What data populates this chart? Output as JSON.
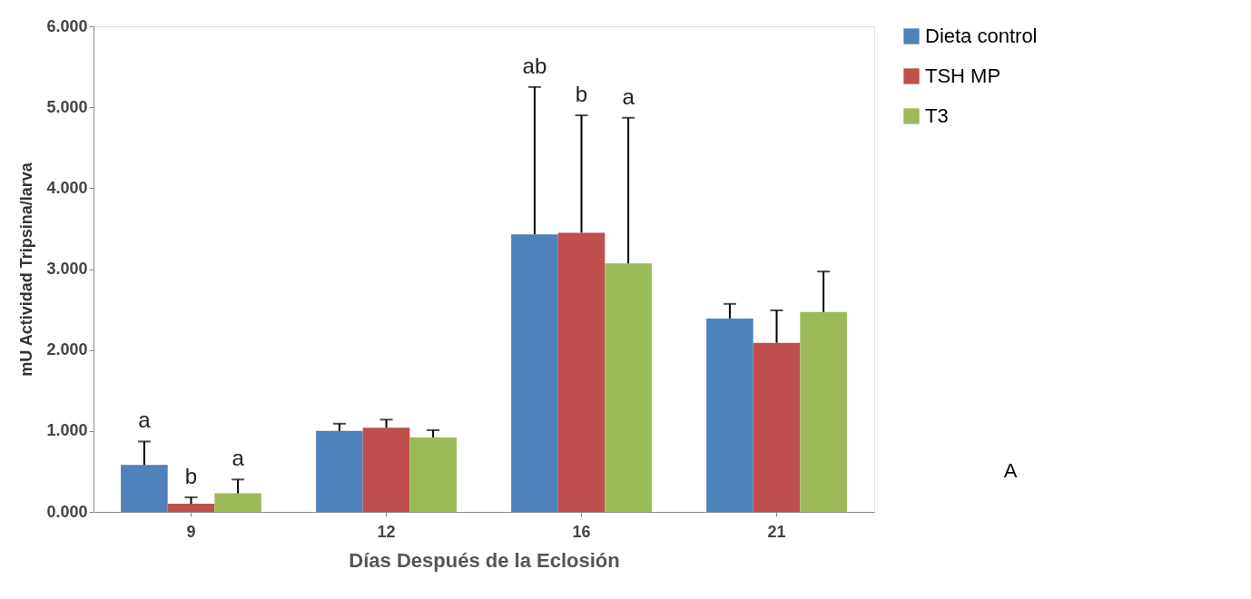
{
  "chart_data": {
    "type": "bar",
    "xlabel": "Días Después de la Eclosión",
    "ylabel": "mU Actividad Tripsina/larva",
    "categories": [
      "9",
      "12",
      "16",
      "21"
    ],
    "series": [
      {
        "name": "Dieta control",
        "color": "#4f81bd",
        "values": [
          0.58,
          1.0,
          3.43,
          2.39
        ],
        "errors": [
          [
            0.58,
            0.87
          ],
          [
            1.0,
            1.09
          ],
          [
            3.43,
            5.25
          ],
          [
            2.39,
            2.57
          ]
        ]
      },
      {
        "name": "TSH MP",
        "color": "#c0504d",
        "values": [
          0.1,
          1.04,
          3.45,
          2.09
        ],
        "errors": [
          [
            0.1,
            0.18
          ],
          [
            1.04,
            1.14
          ],
          [
            3.45,
            4.9
          ],
          [
            2.09,
            2.49
          ]
        ]
      },
      {
        "name": "T3",
        "color": "#9bbb59",
        "values": [
          0.23,
          0.92,
          3.07,
          2.47
        ],
        "errors": [
          [
            0.23,
            0.4
          ],
          [
            0.92,
            1.01
          ],
          [
            3.07,
            4.87
          ],
          [
            2.47,
            2.97
          ]
        ]
      }
    ],
    "ylim": [
      0,
      6
    ],
    "yticks": [
      {
        "value": 0,
        "label": "0.000"
      },
      {
        "value": 1,
        "label": "1.000"
      },
      {
        "value": 2,
        "label": "2.000"
      },
      {
        "value": 3,
        "label": "3.000"
      },
      {
        "value": 4,
        "label": "4.000"
      },
      {
        "value": 5,
        "label": "5.000"
      },
      {
        "value": 6,
        "label": "6.000"
      }
    ],
    "annotations": [
      "a",
      "b",
      "a",
      "ab",
      "b",
      "a",
      "A"
    ],
    "grid": false,
    "legend": "right"
  }
}
